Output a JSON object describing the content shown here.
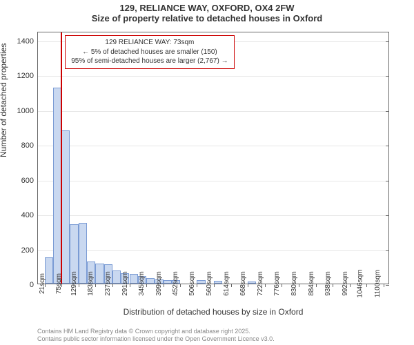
{
  "header": {
    "main_title": "129, RELIANCE WAY, OXFORD, OX4 2FW",
    "subtitle": "Size of property relative to detached houses in Oxford"
  },
  "chart": {
    "type": "histogram",
    "x_label": "Distribution of detached houses by size in Oxford",
    "y_label": "Number of detached properties",
    "bar_fill_color": "#c9d8f0",
    "bar_border_color": "#7a9bd4",
    "marker_color": "#cc0000",
    "background_color": "#ffffff",
    "grid_color": "#e6e6e6",
    "border_color": "#666666",
    "ylim": [
      0,
      1450
    ],
    "ytick_step": 200,
    "yticks": [
      0,
      200,
      400,
      600,
      800,
      1000,
      1200,
      1400
    ],
    "marker_x_value": 73,
    "x_range": [
      0,
      1120
    ],
    "categories": [
      "21sqm",
      "75sqm",
      "129sqm",
      "183sqm",
      "237sqm",
      "291sqm",
      "345sqm",
      "399sqm",
      "452sqm",
      "506sqm",
      "560sqm",
      "614sqm",
      "668sqm",
      "722sqm",
      "776sqm",
      "830sqm",
      "884sqm",
      "938sqm",
      "992sqm",
      "1046sqm",
      "1100sqm"
    ],
    "x_tick_values": [
      21,
      75,
      129,
      183,
      237,
      291,
      345,
      399,
      452,
      506,
      560,
      614,
      668,
      722,
      776,
      830,
      884,
      938,
      992,
      1046,
      1100
    ],
    "bars": [
      {
        "x0": 21,
        "x1": 48,
        "y": 150
      },
      {
        "x0": 48,
        "x1": 75,
        "y": 1125
      },
      {
        "x0": 75,
        "x1": 102,
        "y": 880
      },
      {
        "x0": 102,
        "x1": 129,
        "y": 340
      },
      {
        "x0": 129,
        "x1": 156,
        "y": 350
      },
      {
        "x0": 156,
        "x1": 183,
        "y": 125
      },
      {
        "x0": 183,
        "x1": 210,
        "y": 115
      },
      {
        "x0": 210,
        "x1": 237,
        "y": 110
      },
      {
        "x0": 237,
        "x1": 264,
        "y": 75
      },
      {
        "x0": 264,
        "x1": 291,
        "y": 60
      },
      {
        "x0": 291,
        "x1": 318,
        "y": 55
      },
      {
        "x0": 318,
        "x1": 345,
        "y": 45
      },
      {
        "x0": 345,
        "x1": 372,
        "y": 30
      },
      {
        "x0": 372,
        "x1": 399,
        "y": 25
      },
      {
        "x0": 399,
        "x1": 426,
        "y": 20
      },
      {
        "x0": 426,
        "x1": 452,
        "y": 20
      },
      {
        "x0": 506,
        "x1": 533,
        "y": 20
      },
      {
        "x0": 560,
        "x1": 587,
        "y": 15
      },
      {
        "x0": 668,
        "x1": 695,
        "y": 12
      }
    ],
    "annotation": {
      "line1": "129 RELIANCE WAY: 73sqm",
      "line2": "← 5% of detached houses are smaller (150)",
      "line3": "95% of semi-detached houses are larger (2,767) →"
    }
  },
  "footer": {
    "line1": "Contains HM Land Registry data © Crown copyright and database right 2025.",
    "line2": "Contains public sector information licensed under the Open Government Licence v3.0."
  }
}
